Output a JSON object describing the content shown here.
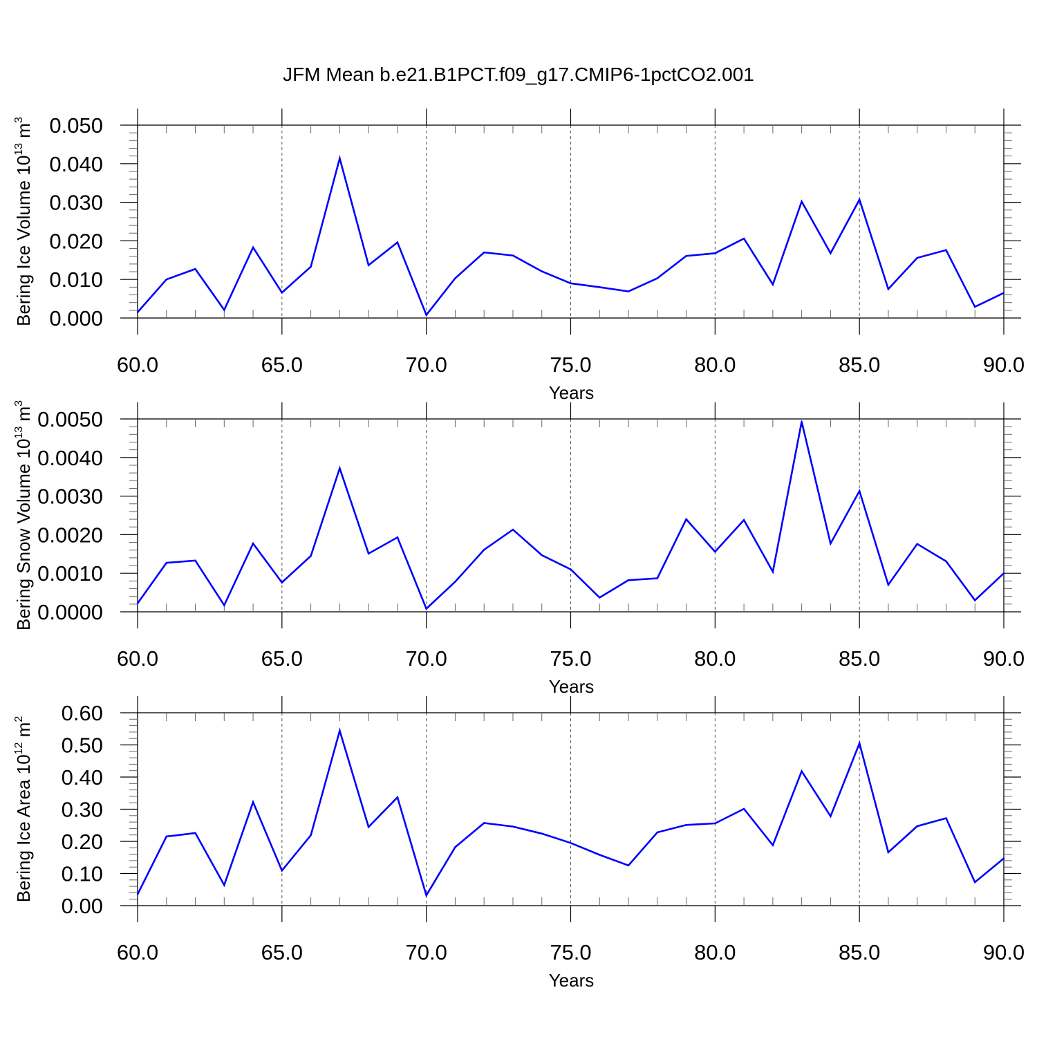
{
  "title": "JFM Mean b.e21.B1PCT.f09_g17.CMIP6-1pctCO2.001",
  "chart_data": [
    {
      "type": "line",
      "ylabel": {
        "base": "Bering Ice Volume 10",
        "exp": "13",
        "unit": " m",
        "unit_exp": "3"
      },
      "xlabel": "Years",
      "xlim": [
        60,
        90
      ],
      "ylim": [
        0,
        0.05
      ],
      "x_ticks": [
        "60.0",
        "65.0",
        "70.0",
        "75.0",
        "80.0",
        "85.0",
        "90.0"
      ],
      "y_ticks": [
        "0.000",
        "0.010",
        "0.020",
        "0.030",
        "0.040",
        "0.050"
      ],
      "grid": "dashed vertical at major x ticks",
      "line_color": "#0000ff",
      "x": [
        60,
        61,
        62,
        63,
        64,
        65,
        66,
        67,
        68,
        69,
        70,
        71,
        72,
        73,
        74,
        75,
        76,
        77,
        78,
        79,
        80,
        81,
        82,
        83,
        84,
        85,
        86,
        87,
        88,
        89,
        90
      ],
      "values": [
        0.0015,
        0.01,
        0.0127,
        0.0021,
        0.0183,
        0.0066,
        0.0133,
        0.0414,
        0.0137,
        0.0196,
        0.0008,
        0.0103,
        0.017,
        0.0162,
        0.0121,
        0.009,
        0.008,
        0.0069,
        0.0103,
        0.0161,
        0.0168,
        0.0206,
        0.0087,
        0.0302,
        0.0168,
        0.0307,
        0.0075,
        0.0156,
        0.0176,
        0.0029,
        0.0065
      ]
    },
    {
      "type": "line",
      "ylabel": {
        "base": "Bering Snow Volume 10",
        "exp": "13",
        "unit": " m",
        "unit_exp": "3"
      },
      "xlabel": "Years",
      "xlim": [
        60,
        90
      ],
      "ylim": [
        0,
        0.005
      ],
      "x_ticks": [
        "60.0",
        "65.0",
        "70.0",
        "75.0",
        "80.0",
        "85.0",
        "90.0"
      ],
      "y_ticks": [
        "0.0000",
        "0.0010",
        "0.0020",
        "0.0030",
        "0.0040",
        "0.0050"
      ],
      "grid": "dashed vertical at major x ticks",
      "line_color": "#0000ff",
      "x": [
        60,
        61,
        62,
        63,
        64,
        65,
        66,
        67,
        68,
        69,
        70,
        71,
        72,
        73,
        74,
        75,
        76,
        77,
        78,
        79,
        80,
        81,
        82,
        83,
        84,
        85,
        86,
        87,
        88,
        89,
        90
      ],
      "values": [
        0.00022,
        0.00127,
        0.00133,
        0.00017,
        0.00177,
        0.00076,
        0.00145,
        0.00372,
        0.00151,
        0.00193,
        8e-05,
        0.00078,
        0.00161,
        0.00213,
        0.00147,
        0.0011,
        0.00037,
        0.00082,
        0.00087,
        0.0024,
        0.00156,
        0.00238,
        0.00104,
        0.00493,
        0.00177,
        0.00313,
        0.0007,
        0.00176,
        0.00131,
        0.0003,
        0.001
      ]
    },
    {
      "type": "line",
      "ylabel": {
        "base": "Bering Ice Area 10",
        "exp": "12",
        "unit": " m",
        "unit_exp": "2"
      },
      "xlabel": "Years",
      "xlim": [
        60,
        90
      ],
      "ylim": [
        0,
        0.6
      ],
      "x_ticks": [
        "60.0",
        "65.0",
        "70.0",
        "75.0",
        "80.0",
        "85.0",
        "90.0"
      ],
      "y_ticks": [
        "0.00",
        "0.10",
        "0.20",
        "0.30",
        "0.40",
        "0.50",
        "0.60"
      ],
      "grid": "dashed vertical at major x ticks",
      "line_color": "#0000ff",
      "x": [
        60,
        61,
        62,
        63,
        64,
        65,
        66,
        67,
        68,
        69,
        70,
        71,
        72,
        73,
        74,
        75,
        76,
        77,
        78,
        79,
        80,
        81,
        82,
        83,
        84,
        85,
        86,
        87,
        88,
        89,
        90
      ],
      "values": [
        0.035,
        0.215,
        0.226,
        0.064,
        0.322,
        0.109,
        0.219,
        0.544,
        0.245,
        0.337,
        0.032,
        0.182,
        0.257,
        0.246,
        0.224,
        0.195,
        0.158,
        0.125,
        0.228,
        0.251,
        0.256,
        0.301,
        0.188,
        0.418,
        0.278,
        0.505,
        0.166,
        0.247,
        0.272,
        0.073,
        0.147
      ]
    }
  ]
}
